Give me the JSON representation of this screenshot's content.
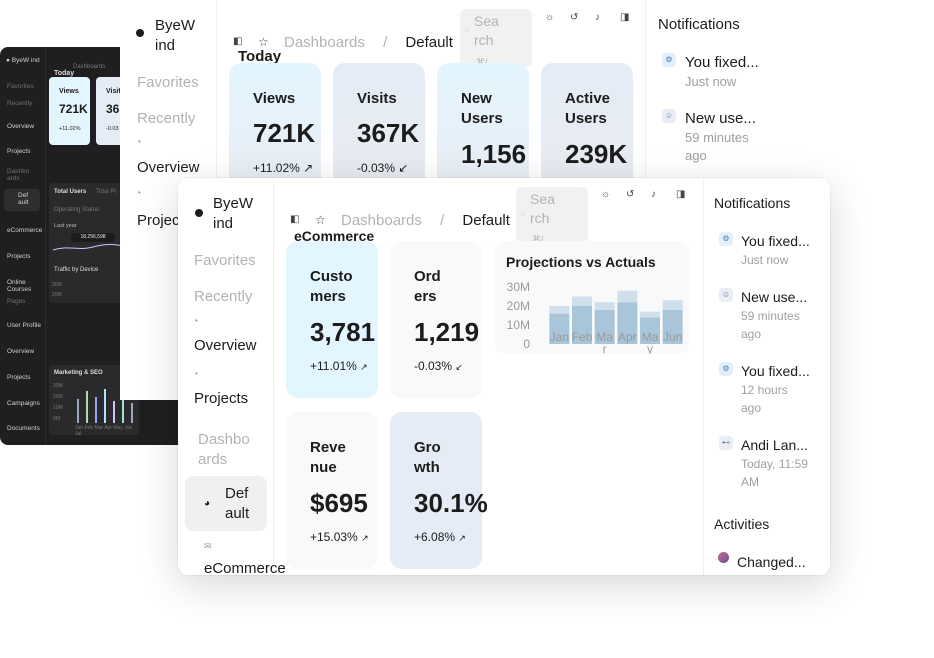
{
  "brand": "ByeWind",
  "dark_window": {
    "brand": "ByeW ind",
    "crumb": "Dashboards",
    "today": "Today",
    "nav": [
      "Favorites",
      "Recently",
      "Overview",
      "Projects",
      "Dashbo ards",
      "Def ault",
      "eCommerce",
      "Projects",
      "Online Courses",
      "Pages",
      "User Profile",
      "Overview",
      "Projects",
      "Campaigns",
      "Documents"
    ],
    "cards": [
      {
        "label": "Views",
        "value": "721K",
        "change": "+11.02%"
      },
      {
        "label": "Visit",
        "value": "36",
        "change": "-0.03"
      }
    ],
    "total_users": "Total Users",
    "total_projects": "Total Pr",
    "operating_status": "Operating Status",
    "last_year": "Last year",
    "tooltip_value": "18,256,598",
    "traffic": "Traffic by Device",
    "marketing": "Marketing & SEO",
    "y_ticks": [
      "30M",
      "20M",
      "10M",
      "0M"
    ],
    "months": [
      "Jan",
      "Feb",
      "Mar",
      "Apr",
      "May",
      "Jun",
      "Jul",
      "Aug",
      "Sep"
    ]
  },
  "mid_window": {
    "brand": "ByeW ind",
    "breadcrumb": [
      "Dashboards",
      "/",
      "Default"
    ],
    "search_placeholder": "Sea rch",
    "search_shortcut": "⌘/",
    "heading": "Today",
    "nav": [
      {
        "label": "Favorites",
        "muted": true
      },
      {
        "label": "Recently",
        "muted": true
      },
      {
        "label": "Overview",
        "muted": false
      },
      {
        "label": "Projec",
        "muted": false
      }
    ],
    "stats": [
      {
        "label": "Views",
        "value": "721K",
        "change": "+11.02%"
      },
      {
        "label": "Visits",
        "value": "367K",
        "change": "-0.03%"
      },
      {
        "label": "New Users",
        "value": "1,156",
        "change": ""
      },
      {
        "label": "Active Users",
        "value": "239K",
        "change": ""
      }
    ],
    "notifications_title": "Notifications",
    "notifications": [
      {
        "title": "You fixed...",
        "time": "Just now"
      },
      {
        "title": "New use...",
        "time": "59 minutes ago"
      }
    ]
  },
  "front_window": {
    "brand": "ByeW ind",
    "breadcrumb": [
      "Dashboards",
      "/",
      "Default"
    ],
    "search_placeholder": "Sea rch",
    "search_shortcut": "⌘/",
    "heading": "eCommerce",
    "nav": {
      "favorites": "Favorites",
      "recently": "Recently",
      "overview": "Overview",
      "projects": "Projects",
      "dashboards": "Dashbo ards",
      "default": "Def ault",
      "ecommerce": "eCommerce"
    },
    "stats": [
      {
        "label": "Custo mers",
        "value": "3,781",
        "change": "+11.01%"
      },
      {
        "label": "Ord ers",
        "value": "1,219",
        "change": "-0.03%"
      },
      {
        "label": "Reve nue",
        "value": "$695",
        "change": "+15.03%"
      },
      {
        "label": "Gro wth",
        "value": "30.1%",
        "change": "+6.08%"
      }
    ],
    "notifications_title": "Notifications",
    "notifications": [
      {
        "title": "You fixed...",
        "time": "Just now",
        "icon": "bug-icon"
      },
      {
        "title": "New use...",
        "time": "59 minutes ago",
        "icon": "user-icon"
      },
      {
        "title": "You fixed...",
        "time": "12 hours ago",
        "icon": "bug-icon"
      },
      {
        "title": "Andi Lan...",
        "time": "Today, 11:59 AM",
        "icon": "broadcast-icon"
      }
    ],
    "activities_title": "Activities",
    "activities": [
      {
        "title": "Changed..."
      }
    ]
  },
  "chart_data": {
    "type": "bar",
    "title": "Projections vs Actuals",
    "categories": [
      "Jan",
      "Feb",
      "Mar",
      "Apr",
      "May",
      "Jun"
    ],
    "series": [
      {
        "values": [
          16,
          20,
          18,
          22,
          14,
          18
        ]
      },
      {
        "values": [
          4,
          5,
          4,
          6,
          3,
          5
        ]
      }
    ],
    "stacked": true,
    "ylim": [
      0,
      30
    ],
    "y_ticks": [
      "30M",
      "20M",
      "10M",
      "0"
    ],
    "x_tick_labels": [
      "Jan",
      "Feb",
      "Ma r",
      "Apr",
      "Ma y",
      "Jun"
    ],
    "colors": [
      "#a8c5da",
      "#cfdfeb"
    ]
  },
  "colors": {
    "card_blue": "#e3f5ff",
    "card_gray": "#f7f9fb",
    "card_lavender": "#e5ecf6",
    "bar_dark": "#a8c5da",
    "bar_light": "#cfdfeb"
  }
}
